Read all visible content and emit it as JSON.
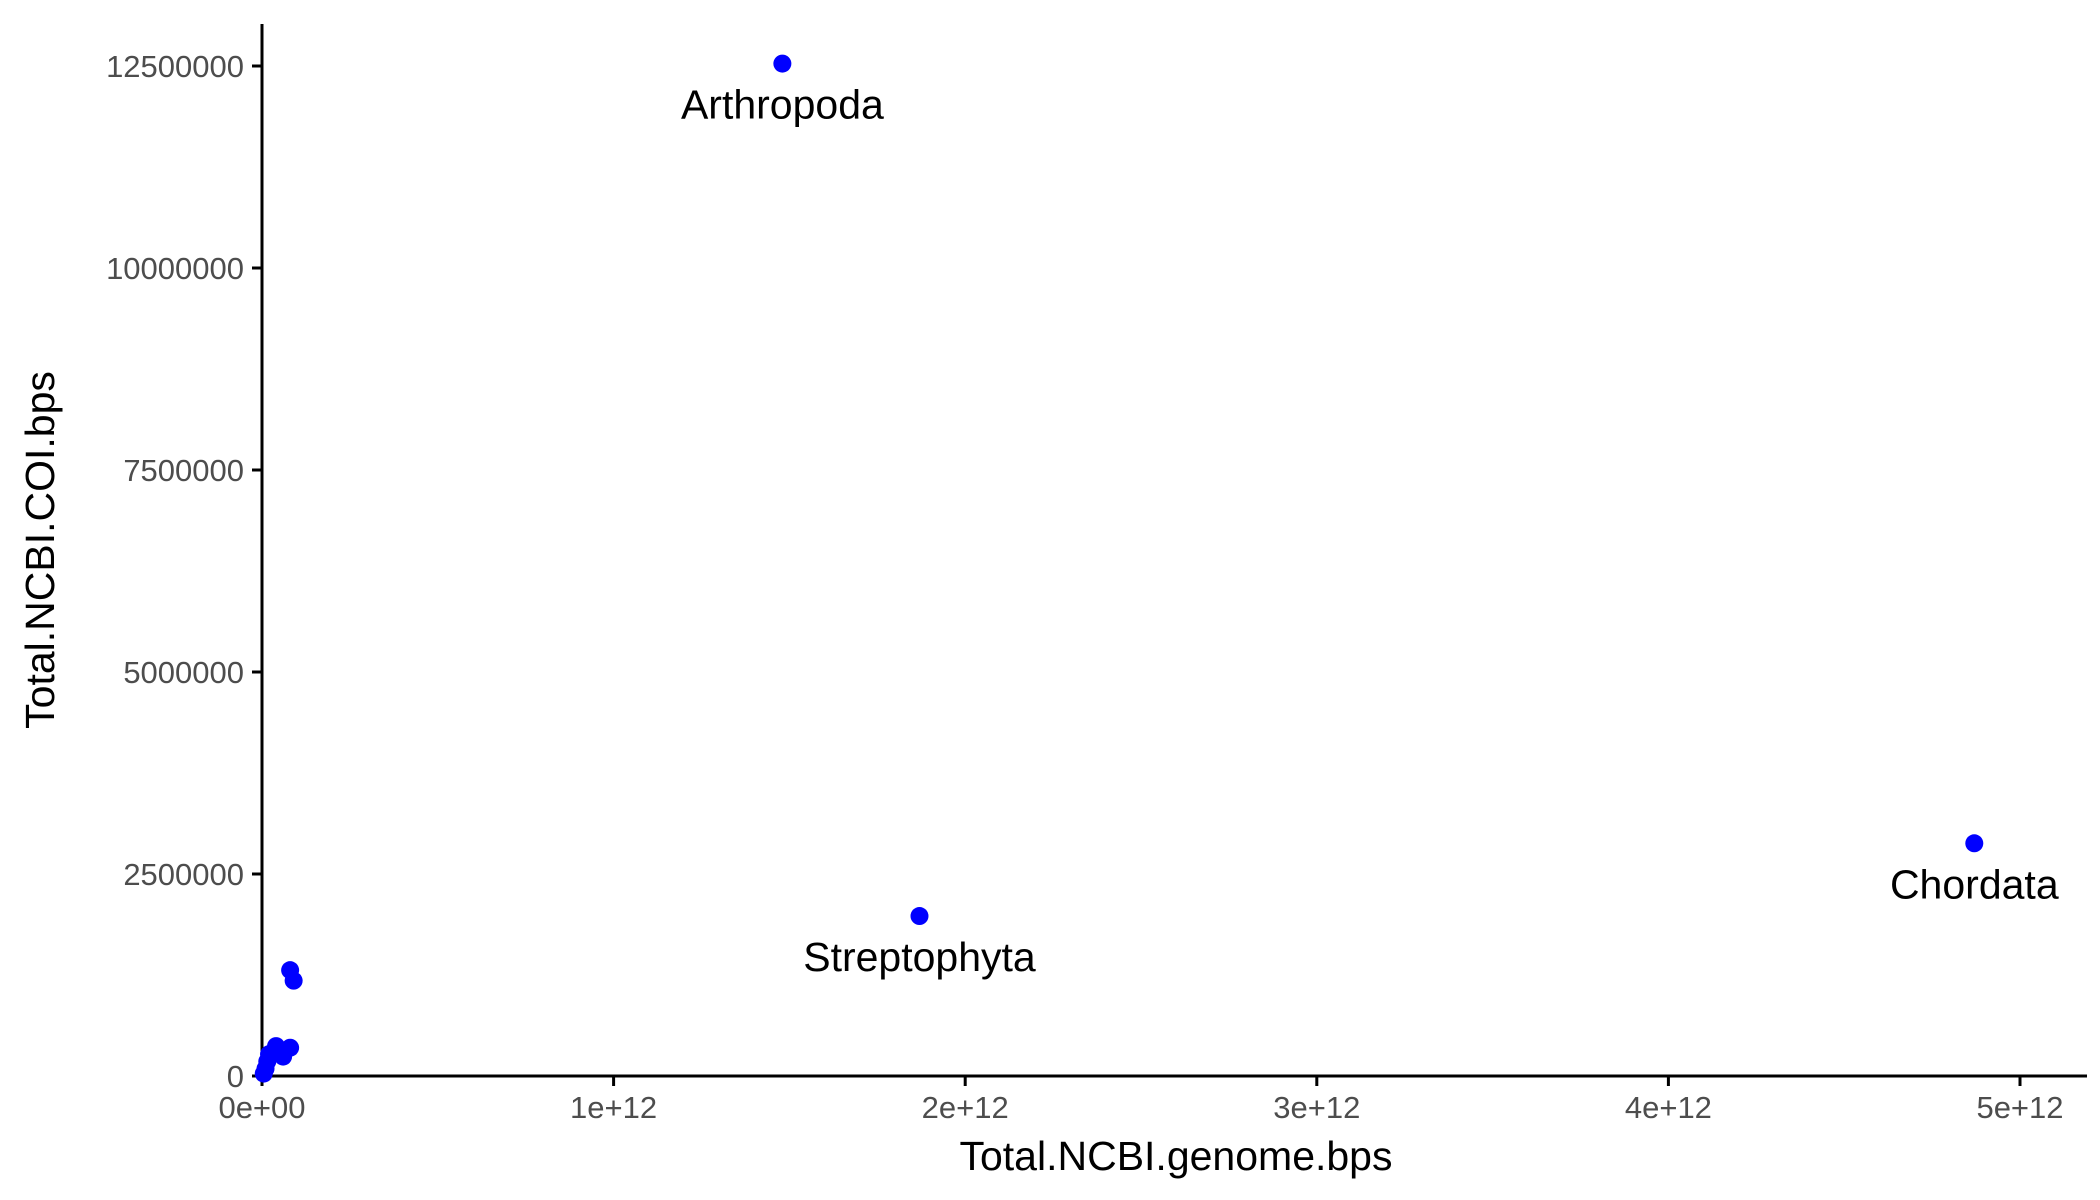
{
  "chart_data": {
    "type": "scatter",
    "title": "",
    "xlabel": "Total.NCBI.genome.bps",
    "ylabel": "Total.NCBI.COI.bps",
    "xlim": [
      0,
      5200000000000
    ],
    "ylim": [
      0,
      13000000
    ],
    "x_ticks": [
      {
        "value": 0,
        "label": "0e+00"
      },
      {
        "value": 1000000000000,
        "label": "1e+12"
      },
      {
        "value": 2000000000000,
        "label": "2e+12"
      },
      {
        "value": 3000000000000,
        "label": "3e+12"
      },
      {
        "value": 4000000000000,
        "label": "4e+12"
      },
      {
        "value": 5000000000000,
        "label": "5e+12"
      }
    ],
    "y_ticks": [
      {
        "value": 0,
        "label": "0"
      },
      {
        "value": 2500000,
        "label": "2500000"
      },
      {
        "value": 5000000,
        "label": "5000000"
      },
      {
        "value": 7500000,
        "label": "7500000"
      },
      {
        "value": 10000000,
        "label": "10000000"
      },
      {
        "value": 12500000,
        "label": "12500000"
      }
    ],
    "grid": false,
    "legend": "none",
    "point_color": "#0000ff",
    "axis_color": "#000000",
    "points": [
      {
        "x": 1480000000000,
        "y": 12530000,
        "label": "Arthropoda"
      },
      {
        "x": 1870000000000,
        "y": 1980000,
        "label": "Streptophyta"
      },
      {
        "x": 4870000000000,
        "y": 2880000,
        "label": "Chordata"
      },
      {
        "x": 80000000000,
        "y": 1310000,
        "label": ""
      },
      {
        "x": 90000000000,
        "y": 1180000,
        "label": ""
      },
      {
        "x": 80000000000,
        "y": 350000,
        "label": ""
      },
      {
        "x": 40000000000,
        "y": 370000,
        "label": ""
      },
      {
        "x": 35000000000,
        "y": 300000,
        "label": ""
      },
      {
        "x": 60000000000,
        "y": 240000,
        "label": ""
      },
      {
        "x": 20000000000,
        "y": 270000,
        "label": ""
      },
      {
        "x": 15000000000,
        "y": 180000,
        "label": ""
      },
      {
        "x": 10000000000,
        "y": 90000,
        "label": ""
      },
      {
        "x": 5000000000,
        "y": 30000,
        "label": ""
      }
    ]
  }
}
